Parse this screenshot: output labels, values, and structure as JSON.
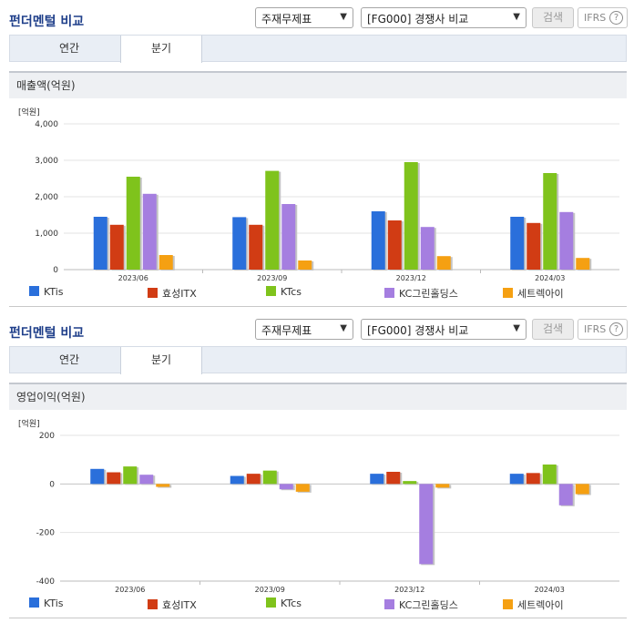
{
  "panels": [
    {
      "title": "펀더멘털 비교",
      "select1": "주재무제표",
      "select2": "[FG000] 경쟁사 비교",
      "search_label": "검색",
      "ifrs_label": "IFRS",
      "ifrs_help": "?",
      "tabs": [
        "연간",
        "분기"
      ],
      "metric_title": "매출액(억원)"
    },
    {
      "title": "펀더멘털 비교",
      "select1": "주재무제표",
      "select2": "[FG000] 경쟁사 비교",
      "search_label": "검색",
      "ifrs_label": "IFRS",
      "ifrs_help": "?",
      "tabs": [
        "연간",
        "분기"
      ],
      "metric_title": "영업이익(억원)"
    }
  ],
  "chart_data": [
    {
      "type": "bar",
      "unit_label": "[억원]",
      "categories": [
        "2023/06",
        "2023/09",
        "2023/12",
        "2024/03"
      ],
      "ylim": [
        0,
        4000
      ],
      "yticks": [
        0,
        1000,
        2000,
        3000,
        4000
      ],
      "ytick_labels": [
        "0",
        "1,000",
        "2,000",
        "3,000",
        "4,000"
      ],
      "grid": true,
      "legend": "bottom",
      "series": [
        {
          "name": "KTis",
          "color": "#2a6fdb",
          "values": [
            1450,
            1440,
            1600,
            1450
          ]
        },
        {
          "name": "효성ITX",
          "color": "#d13c14",
          "values": [
            1230,
            1230,
            1350,
            1280
          ]
        },
        {
          "name": "KTcs",
          "color": "#7fc31c",
          "values": [
            2550,
            2710,
            2950,
            2650
          ]
        },
        {
          "name": "KC그린홀딩스",
          "color": "#a57ee0",
          "values": [
            2080,
            1800,
            1170,
            1580
          ]
        },
        {
          "name": "세트렉아이",
          "color": "#f5a012",
          "values": [
            400,
            250,
            370,
            320
          ]
        }
      ]
    },
    {
      "type": "bar",
      "unit_label": "[억원]",
      "categories": [
        "2023/06",
        "2023/09",
        "2023/12",
        "2024/03"
      ],
      "ylim": [
        -400,
        200
      ],
      "yticks": [
        -400,
        -200,
        0,
        200
      ],
      "ytick_labels": [
        "-400",
        "-200",
        "0",
        "200"
      ],
      "grid": true,
      "legend": "bottom",
      "series": [
        {
          "name": "KTis",
          "color": "#2a6fdb",
          "values": [
            62,
            33,
            42,
            42
          ]
        },
        {
          "name": "효성ITX",
          "color": "#d13c14",
          "values": [
            48,
            42,
            50,
            45
          ]
        },
        {
          "name": "KTcs",
          "color": "#7fc31c",
          "values": [
            72,
            55,
            12,
            80
          ]
        },
        {
          "name": "KC그린홀딩스",
          "color": "#a57ee0",
          "values": [
            38,
            -22,
            -330,
            -88
          ]
        },
        {
          "name": "세트렉아이",
          "color": "#f5a012",
          "values": [
            -12,
            -32,
            -15,
            -42
          ]
        }
      ]
    }
  ]
}
